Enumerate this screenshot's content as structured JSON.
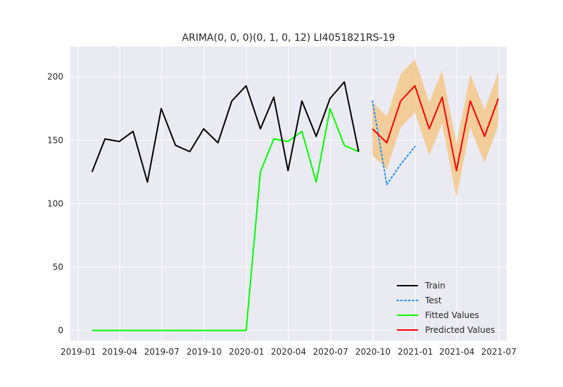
{
  "chart_data": {
    "type": "line",
    "title": "ARIMA(0, 0, 0)(0, 1, 0, 12) LI4051821RS-19",
    "xlabel": "",
    "ylabel": "",
    "x_ticks": [
      "2019-01",
      "2019-04",
      "2019-07",
      "2019-10",
      "2020-01",
      "2020-04",
      "2020-07",
      "2020-10",
      "2021-01",
      "2021-04",
      "2021-07"
    ],
    "y_ticks": [
      0,
      50,
      100,
      150,
      200
    ],
    "xlim": [
      "2018-12-15",
      "2021-07-18"
    ],
    "ylim": [
      -8,
      224
    ],
    "grid": true,
    "legend_position": "lower-right",
    "colors": {
      "background": "#eaeaf2",
      "grid": "#ffffff",
      "train": "#000000",
      "test": "#1e90ff",
      "fitted": "#00ff00",
      "predicted": "#ff0000",
      "band": "#f5c88a"
    },
    "series": [
      {
        "name": "Train",
        "style": "solid",
        "x": [
          "2019-01-31",
          "2019-02-28",
          "2019-03-31",
          "2019-04-30",
          "2019-05-31",
          "2019-06-30",
          "2019-07-31",
          "2019-08-31",
          "2019-09-30",
          "2019-10-31",
          "2019-11-30",
          "2019-12-31",
          "2020-01-31",
          "2020-02-29",
          "2020-03-31",
          "2020-04-30",
          "2020-05-31",
          "2020-06-30",
          "2020-07-31",
          "2020-08-31"
        ],
        "values": [
          125,
          151,
          149,
          157,
          117,
          175,
          146,
          141,
          159,
          148,
          181,
          193,
          159,
          184,
          126,
          181,
          153,
          183,
          196,
          141
        ]
      },
      {
        "name": "Test",
        "style": "dotted",
        "x": [
          "2020-09-30",
          "2020-10-31",
          "2020-11-30",
          "2020-12-31"
        ],
        "values": [
          181,
          115,
          131,
          145
        ]
      },
      {
        "name": "Fitted Values",
        "style": "solid",
        "x": [
          "2019-01-31",
          "2019-02-28",
          "2019-03-31",
          "2019-04-30",
          "2019-05-31",
          "2019-06-30",
          "2019-07-31",
          "2019-08-31",
          "2019-09-30",
          "2019-10-31",
          "2019-11-30",
          "2019-12-31",
          "2020-01-31",
          "2020-02-29",
          "2020-03-31",
          "2020-04-30",
          "2020-05-31",
          "2020-06-30",
          "2020-07-31",
          "2020-08-31"
        ],
        "values": [
          0,
          0,
          0,
          0,
          0,
          0,
          0,
          0,
          0,
          0,
          0,
          0,
          125,
          151,
          149,
          157,
          117,
          175,
          146,
          141
        ]
      },
      {
        "name": "Predicted Values",
        "style": "solid",
        "x": [
          "2020-09-30",
          "2020-10-31",
          "2020-11-30",
          "2020-12-31",
          "2021-01-31",
          "2021-02-28",
          "2021-03-31",
          "2021-04-30",
          "2021-05-31",
          "2021-06-30"
        ],
        "values": [
          159,
          148,
          181,
          193,
          159,
          184,
          126,
          181,
          153,
          183
        ],
        "lower": [
          138,
          127,
          160,
          172,
          138,
          163,
          105,
          160,
          132,
          162
        ],
        "upper": [
          180,
          169,
          202,
          214,
          180,
          205,
          147,
          202,
          174,
          204
        ]
      }
    ]
  }
}
